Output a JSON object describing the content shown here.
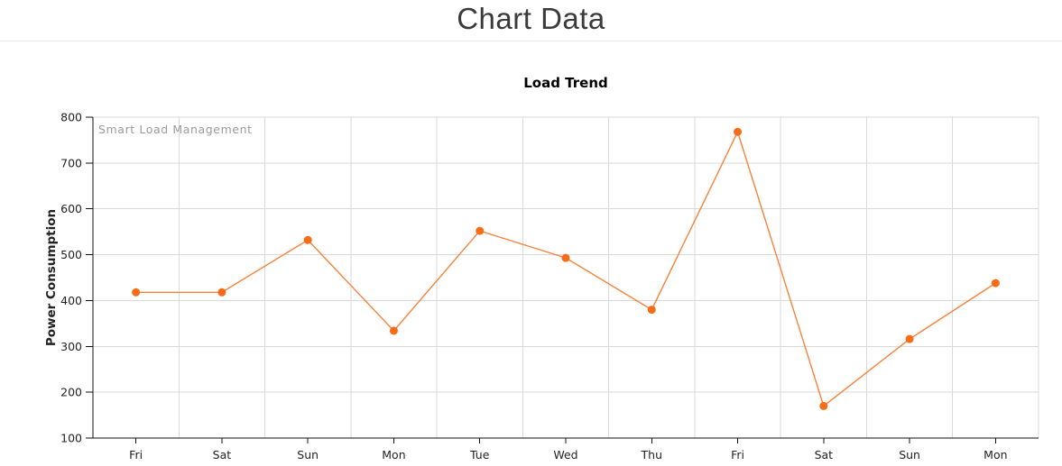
{
  "page": {
    "title": "Chart Data"
  },
  "chart_data": {
    "type": "line",
    "title": "Load Trend",
    "watermark": "Smart Load Management",
    "xlabel": "",
    "ylabel": "Power Consumption",
    "categories": [
      "Fri",
      "Sat",
      "Sun",
      "Mon",
      "Tue",
      "Wed",
      "Thu",
      "Fri",
      "Sat",
      "Sun",
      "Mon"
    ],
    "values": [
      418,
      418,
      532,
      334,
      552,
      493,
      380,
      768,
      170,
      316,
      438
    ],
    "series_name": "Power Consumption",
    "ylim": [
      100,
      800
    ],
    "ytick_step": 100,
    "grid": true,
    "legend_position": "none",
    "colors": {
      "line": "#f7823a",
      "marker": "#f76c16",
      "grid": "#d9d9d9",
      "axis": "#111111",
      "tick_label": "#222222"
    }
  }
}
